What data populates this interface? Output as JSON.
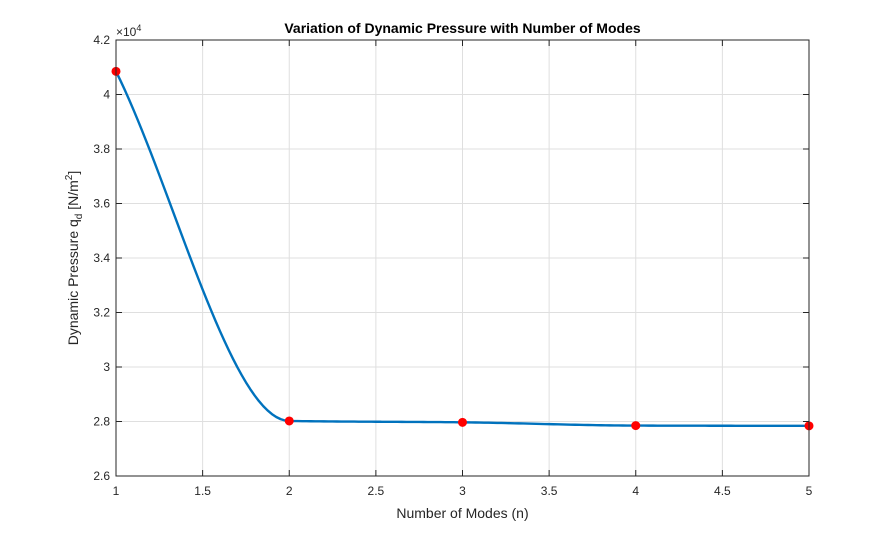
{
  "chart_data": {
    "type": "line",
    "title": "Variation of Dynamic Pressure with Number of Modes",
    "xlabel": "Number of Modes (n)",
    "ylabel": {
      "prefix": "Dynamic Pressure q",
      "subscript": "d",
      "unit_open": " [N/m",
      "superscript": "2",
      "unit_close": "]"
    },
    "y_exponent": {
      "base": "×10",
      "power": "4"
    },
    "xlim": [
      1,
      5
    ],
    "ylim": [
      26000,
      42000
    ],
    "x_ticks": [
      1,
      1.5,
      2,
      2.5,
      3,
      3.5,
      4,
      4.5,
      5
    ],
    "x_tick_labels": [
      "1",
      "1.5",
      "2",
      "2.5",
      "3",
      "3.5",
      "4",
      "4.5",
      "5"
    ],
    "y_ticks": [
      26000,
      28000,
      30000,
      32000,
      34000,
      36000,
      38000,
      40000,
      42000
    ],
    "y_tick_labels": [
      "2.6",
      "2.8",
      "3",
      "3.2",
      "3.4",
      "3.6",
      "3.8",
      "4",
      "4.2"
    ],
    "grid": true,
    "series": [
      {
        "x": [
          1,
          2,
          3,
          4,
          5
        ],
        "y": [
          40850,
          28020,
          27970,
          27850,
          27840
        ],
        "line_color": "#0072BD",
        "marker_color": "#FF0000"
      }
    ]
  }
}
